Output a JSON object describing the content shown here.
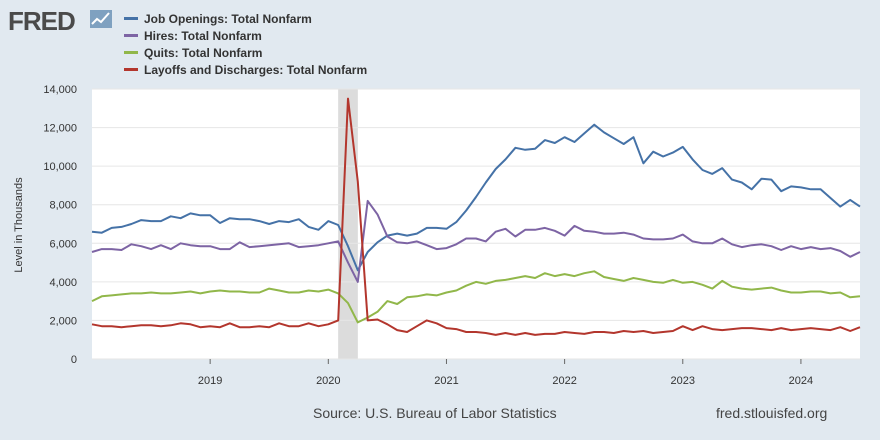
{
  "branding": {
    "logo_text": "FRED"
  },
  "footer": {
    "source": "Source: U.S. Bureau of Labor Statistics",
    "url": "fred.stlouisfed.org"
  },
  "colors": {
    "background": "#e1e9f0",
    "plot_background": "#ffffff",
    "recession_band": "#dcdcdc",
    "grid": "#e6e6e6"
  },
  "chart_data": {
    "type": "line",
    "title": "",
    "xlabel": "",
    "ylabel": "Level in Thousands",
    "x_start": "2018-01",
    "x_end": "2024-07",
    "ylim": [
      0,
      14000
    ],
    "y_ticks": [
      0,
      2000,
      4000,
      6000,
      8000,
      10000,
      12000,
      14000
    ],
    "y_tick_labels": [
      "0",
      "2,000",
      "4,000",
      "6,000",
      "8,000",
      "10,000",
      "12,000",
      "14,000"
    ],
    "x_ticks": [
      "2019-01",
      "2020-01",
      "2021-01",
      "2022-01",
      "2023-01",
      "2024-01"
    ],
    "x_tick_labels": [
      "2019",
      "2020",
      "2021",
      "2022",
      "2023",
      "2024"
    ],
    "grid": true,
    "legend_position": "top-left",
    "recession": {
      "start": "2020-02",
      "end": "2020-04"
    },
    "x": [
      "2018-01",
      "2018-02",
      "2018-03",
      "2018-04",
      "2018-05",
      "2018-06",
      "2018-07",
      "2018-08",
      "2018-09",
      "2018-10",
      "2018-11",
      "2018-12",
      "2019-01",
      "2019-02",
      "2019-03",
      "2019-04",
      "2019-05",
      "2019-06",
      "2019-07",
      "2019-08",
      "2019-09",
      "2019-10",
      "2019-11",
      "2019-12",
      "2020-01",
      "2020-02",
      "2020-03",
      "2020-04",
      "2020-05",
      "2020-06",
      "2020-07",
      "2020-08",
      "2020-09",
      "2020-10",
      "2020-11",
      "2020-12",
      "2021-01",
      "2021-02",
      "2021-03",
      "2021-04",
      "2021-05",
      "2021-06",
      "2021-07",
      "2021-08",
      "2021-09",
      "2021-10",
      "2021-11",
      "2021-12",
      "2022-01",
      "2022-02",
      "2022-03",
      "2022-04",
      "2022-05",
      "2022-06",
      "2022-07",
      "2022-08",
      "2022-09",
      "2022-10",
      "2022-11",
      "2022-12",
      "2023-01",
      "2023-02",
      "2023-03",
      "2023-04",
      "2023-05",
      "2023-06",
      "2023-07",
      "2023-08",
      "2023-09",
      "2023-10",
      "2023-11",
      "2023-12",
      "2024-01",
      "2024-02",
      "2024-03",
      "2024-04",
      "2024-05",
      "2024-06",
      "2024-07"
    ],
    "series": [
      {
        "name": "Job Openings: Total Nonfarm",
        "color": "#4572a7",
        "values": [
          6600,
          6550,
          6800,
          6850,
          7000,
          7200,
          7150,
          7150,
          7400,
          7300,
          7550,
          7450,
          7450,
          7050,
          7300,
          7250,
          7250,
          7150,
          7000,
          7150,
          7100,
          7250,
          6850,
          6700,
          7150,
          6950,
          5850,
          4600,
          5550,
          6050,
          6400,
          6500,
          6400,
          6500,
          6800,
          6800,
          6750,
          7100,
          7700,
          8400,
          9150,
          9850,
          10350,
          10950,
          10850,
          10900,
          11350,
          11200,
          11500,
          11250,
          11700,
          12150,
          11750,
          11450,
          11150,
          11500,
          10150,
          10750,
          10500,
          10700,
          11000,
          10350,
          9800,
          9600,
          9900,
          9300,
          9150,
          8800,
          9350,
          9300,
          8700,
          8950,
          8900,
          8800,
          8800,
          8350,
          7900,
          8250,
          7900
        ]
      },
      {
        "name": "Hires: Total Nonfarm",
        "color": "#7d64a4",
        "values": [
          5550,
          5700,
          5700,
          5650,
          5950,
          5850,
          5700,
          5900,
          5700,
          6000,
          5900,
          5850,
          5850,
          5700,
          5700,
          6050,
          5800,
          5850,
          5900,
          5950,
          6000,
          5800,
          5850,
          5900,
          6000,
          6100,
          5000,
          4000,
          8200,
          7500,
          6350,
          6050,
          6000,
          6100,
          5900,
          5700,
          5750,
          5950,
          6250,
          6250,
          6100,
          6600,
          6750,
          6350,
          6700,
          6700,
          6800,
          6650,
          6400,
          6900,
          6650,
          6600,
          6500,
          6500,
          6550,
          6450,
          6250,
          6200,
          6200,
          6250,
          6450,
          6100,
          6000,
          6000,
          6250,
          5950,
          5800,
          5900,
          5950,
          5850,
          5650,
          5850,
          5700,
          5800,
          5700,
          5750,
          5600,
          5300,
          5550
        ]
      },
      {
        "name": "Quits: Total Nonfarm",
        "color": "#91b74a",
        "values": [
          3000,
          3250,
          3300,
          3350,
          3400,
          3400,
          3450,
          3400,
          3400,
          3450,
          3500,
          3400,
          3500,
          3550,
          3500,
          3500,
          3450,
          3450,
          3650,
          3550,
          3450,
          3450,
          3550,
          3500,
          3600,
          3400,
          2900,
          1900,
          2150,
          2450,
          3000,
          2850,
          3200,
          3250,
          3350,
          3300,
          3450,
          3550,
          3800,
          4000,
          3900,
          4050,
          4100,
          4200,
          4300,
          4200,
          4450,
          4300,
          4400,
          4300,
          4450,
          4550,
          4250,
          4150,
          4050,
          4200,
          4100,
          4000,
          3950,
          4100,
          3950,
          4000,
          3850,
          3650,
          4050,
          3750,
          3650,
          3600,
          3650,
          3700,
          3550,
          3450,
          3450,
          3500,
          3500,
          3400,
          3450,
          3200,
          3250
        ]
      },
      {
        "name": "Layoffs and Discharges: Total Nonfarm",
        "color": "#b3362d",
        "values": [
          1800,
          1700,
          1700,
          1650,
          1700,
          1750,
          1750,
          1700,
          1750,
          1850,
          1800,
          1650,
          1700,
          1650,
          1850,
          1650,
          1650,
          1700,
          1650,
          1850,
          1700,
          1700,
          1850,
          1700,
          1800,
          2000,
          13500,
          9200,
          2000,
          2050,
          1800,
          1500,
          1400,
          1700,
          2000,
          1850,
          1600,
          1550,
          1400,
          1400,
          1350,
          1250,
          1350,
          1250,
          1350,
          1250,
          1300,
          1300,
          1400,
          1350,
          1300,
          1400,
          1400,
          1350,
          1450,
          1400,
          1450,
          1350,
          1400,
          1450,
          1700,
          1500,
          1700,
          1550,
          1500,
          1550,
          1600,
          1600,
          1550,
          1500,
          1600,
          1500,
          1550,
          1600,
          1550,
          1500,
          1650,
          1450,
          1650
        ]
      }
    ]
  }
}
